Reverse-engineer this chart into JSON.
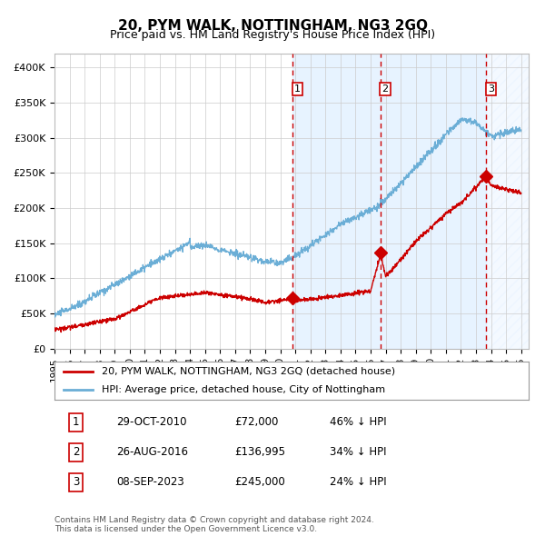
{
  "title": "20, PYM WALK, NOTTINGHAM, NG3 2GQ",
  "subtitle": "Price paid vs. HM Land Registry's House Price Index (HPI)",
  "ylabel": "",
  "xlim_start": 1995.0,
  "xlim_end": 2026.5,
  "ylim": [
    0,
    420000
  ],
  "yticks": [
    0,
    50000,
    100000,
    150000,
    200000,
    250000,
    300000,
    350000,
    400000
  ],
  "sale_dates": [
    2010.832,
    2016.648,
    2023.685
  ],
  "sale_prices": [
    72000,
    136995,
    245000
  ],
  "sale_labels": [
    "1",
    "2",
    "3"
  ],
  "shaded_region": [
    2010.832,
    2023.685
  ],
  "legend_line1": "20, PYM WALK, NOTTINGHAM, NG3 2GQ (detached house)",
  "legend_line2": "HPI: Average price, detached house, City of Nottingham",
  "table_data": [
    [
      "1",
      "29-OCT-2010",
      "£72,000",
      "46% ↓ HPI"
    ],
    [
      "2",
      "26-AUG-2016",
      "£136,995",
      "34% ↓ HPI"
    ],
    [
      "3",
      "08-SEP-2023",
      "£245,000",
      "24% ↓ HPI"
    ]
  ],
  "footer": "Contains HM Land Registry data © Crown copyright and database right 2024.\nThis data is licensed under the Open Government Licence v3.0.",
  "hpi_color": "#6baed6",
  "price_color": "#cc0000",
  "background_color": "#ffffff",
  "grid_color": "#cccccc",
  "shaded_color": "#ddeeff"
}
